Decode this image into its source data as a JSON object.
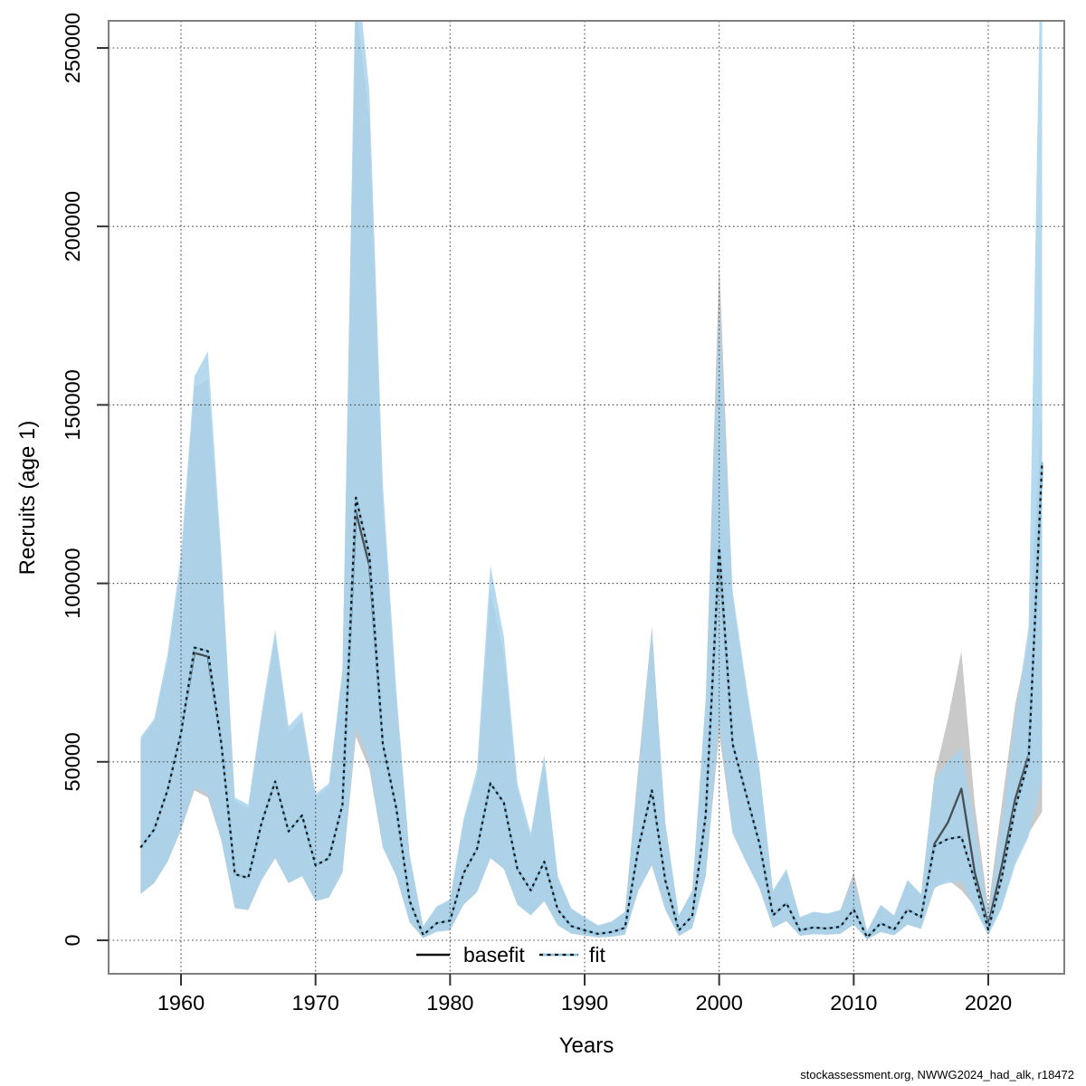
{
  "page": {
    "background": "#ffffff"
  },
  "footer": {
    "text": "stockassessment.org, NWWG2024_had_alk, r18472"
  },
  "legend": {
    "items": [
      {
        "label": "basefit",
        "style": "solid"
      },
      {
        "label": "fit",
        "style": "dashed"
      }
    ]
  },
  "chart_data": {
    "type": "line",
    "title": "",
    "xlabel": "Years",
    "ylabel": "Recruits (age 1)",
    "grid": true,
    "legend_position": "bottom-center-inside",
    "xlim": [
      1954.6,
      2025.6
    ],
    "ylim": [
      -9500,
      257600
    ],
    "x_ticks": [
      1960,
      1970,
      1980,
      1990,
      2000,
      2010,
      2020
    ],
    "x_tick_labels": [
      "1960",
      "1970",
      "1980",
      "1990",
      "2000",
      "2010",
      "2020"
    ],
    "y_ticks": [
      0,
      50000,
      100000,
      150000,
      200000,
      250000
    ],
    "y_tick_labels": [
      "0",
      "50000",
      "100000",
      "150000",
      "200000",
      "250000"
    ],
    "years": [
      1957,
      1958,
      1959,
      1960,
      1961,
      1962,
      1963,
      1964,
      1965,
      1966,
      1967,
      1968,
      1969,
      1970,
      1971,
      1972,
      1973,
      1974,
      1975,
      1976,
      1977,
      1978,
      1979,
      1980,
      1981,
      1982,
      1983,
      1984,
      1985,
      1986,
      1987,
      1988,
      1989,
      1990,
      1991,
      1992,
      1993,
      1994,
      1995,
      1996,
      1997,
      1998,
      1999,
      2000,
      2001,
      2002,
      2003,
      2004,
      2005,
      2006,
      2007,
      2008,
      2009,
      2010,
      2011,
      2012,
      2013,
      2014,
      2015,
      2016,
      2017,
      2018,
      2019,
      2020,
      2021,
      2022,
      2023,
      2024
    ],
    "series": [
      {
        "name": "basefit",
        "line_style": "solid",
        "line_color": "#474f54",
        "band_color": "#c9c9c9",
        "values": [
          26000,
          31000,
          42000,
          58000,
          80500,
          79500,
          55000,
          18500,
          17500,
          33000,
          44500,
          30500,
          35000,
          21000,
          23000,
          38000,
          120000,
          105000,
          55000,
          37000,
          11000,
          1500,
          4800,
          5500,
          18800,
          25600,
          44000,
          38500,
          20000,
          14000,
          22000,
          8600,
          4000,
          2800,
          1800,
          2300,
          3500,
          26000,
          42000,
          16700,
          2800,
          6800,
          35000,
          108000,
          55000,
          41000,
          27000,
          7000,
          10400,
          2800,
          3600,
          3300,
          3800,
          8600,
          800,
          4800,
          3000,
          8600,
          6500,
          27000,
          33000,
          42500,
          19000,
          4300,
          20800,
          39500,
          52000,
          132000
        ],
        "ci_low": [
          13000,
          16000,
          22000,
          31000,
          42000,
          40000,
          28000,
          9000,
          8500,
          17000,
          23000,
          16000,
          18000,
          11000,
          12000,
          19000,
          57000,
          48000,
          26000,
          18000,
          5000,
          600,
          2400,
          2800,
          10000,
          13500,
          23000,
          20000,
          10000,
          7000,
          11000,
          4200,
          1900,
          1300,
          800,
          1000,
          1600,
          14000,
          21000,
          8500,
          1200,
          3400,
          18000,
          58000,
          30000,
          22000,
          14500,
          3500,
          5400,
          1300,
          1700,
          1600,
          1800,
          4400,
          250,
          2300,
          1400,
          4400,
          3200,
          14500,
          17000,
          14000,
          9500,
          1800,
          10000,
          22000,
          30000,
          36000
        ],
        "ci_high": [
          56000,
          61000,
          78000,
          105000,
          155000,
          157000,
          105000,
          39000,
          37000,
          62000,
          85000,
          58000,
          62000,
          40000,
          43000,
          74000,
          262000,
          230000,
          122000,
          68000,
          23000,
          3800,
          9300,
          11000,
          33000,
          46000,
          98000,
          80000,
          42000,
          29000,
          50000,
          17500,
          8800,
          6300,
          4000,
          5100,
          7800,
          49000,
          88000,
          32000,
          6800,
          13500,
          66000,
          190000,
          96000,
          70000,
          47000,
          13500,
          19500,
          6300,
          7800,
          7300,
          8300,
          19000,
          2500,
          9700,
          6800,
          16500,
          12600,
          46000,
          62000,
          81000,
          38000,
          9000,
          38000,
          66000,
          84000,
          150000
        ]
      },
      {
        "name": "fit",
        "line_style": "dashed",
        "line_color": "#15191c",
        "line_under_color": "#8fc3e0",
        "band_color": "#a8d2ec",
        "values": [
          26000,
          31000,
          42000,
          58000,
          82000,
          81000,
          55000,
          18500,
          17500,
          33000,
          44500,
          30500,
          35000,
          21000,
          23000,
          38000,
          124000,
          108000,
          55000,
          37000,
          11000,
          1500,
          4800,
          5500,
          18800,
          25600,
          44000,
          38500,
          20000,
          14000,
          22000,
          8600,
          4000,
          2800,
          1800,
          2300,
          3500,
          26000,
          42000,
          16700,
          2800,
          6800,
          35000,
          110000,
          55000,
          41000,
          27000,
          7000,
          10400,
          2800,
          3600,
          3300,
          3800,
          8600,
          800,
          4800,
          3000,
          8600,
          6500,
          26400,
          28400,
          29000,
          16700,
          3000,
          17500,
          37000,
          50400,
          134000
        ],
        "ci_low": [
          13000,
          16000,
          22000,
          31000,
          43000,
          41000,
          28000,
          9000,
          8500,
          17000,
          23000,
          16000,
          18000,
          11000,
          12000,
          19000,
          60000,
          50000,
          26000,
          18000,
          5000,
          600,
          2400,
          2800,
          10000,
          13500,
          23000,
          20000,
          10000,
          7000,
          11000,
          4200,
          1900,
          1300,
          800,
          1000,
          1600,
          14000,
          21000,
          8500,
          1200,
          3400,
          18000,
          62000,
          30000,
          22000,
          14500,
          3500,
          5400,
          1300,
          1700,
          1600,
          1800,
          4400,
          250,
          2300,
          1400,
          4400,
          3200,
          15000,
          16000,
          16500,
          8800,
          1300,
          9000,
          21000,
          29000,
          45000
        ],
        "ci_high": [
          57000,
          62000,
          80000,
          108000,
          158000,
          165000,
          108000,
          40000,
          38000,
          64000,
          87000,
          60000,
          64000,
          41000,
          44000,
          76000,
          275000,
          238000,
          128000,
          70000,
          24000,
          4000,
          9500,
          11500,
          34000,
          48000,
          105000,
          85000,
          44000,
          30000,
          52000,
          18000,
          9000,
          6500,
          4200,
          5300,
          8000,
          47000,
          87000,
          33000,
          7000,
          14000,
          68000,
          178000,
          98000,
          72000,
          48000,
          14000,
          20000,
          6500,
          8000,
          7500,
          8500,
          17000,
          2600,
          10000,
          7000,
          17000,
          13000,
          45000,
          50000,
          54000,
          32000,
          7200,
          33000,
          62000,
          88000,
          300000
        ]
      }
    ],
    "colors": {
      "grid": "#4a4a4a",
      "box": "#7f7f7f",
      "tick": "#333333",
      "text": "#000000",
      "fit_band": "#a8d2ec",
      "base_band": "#c9c9c9"
    }
  }
}
